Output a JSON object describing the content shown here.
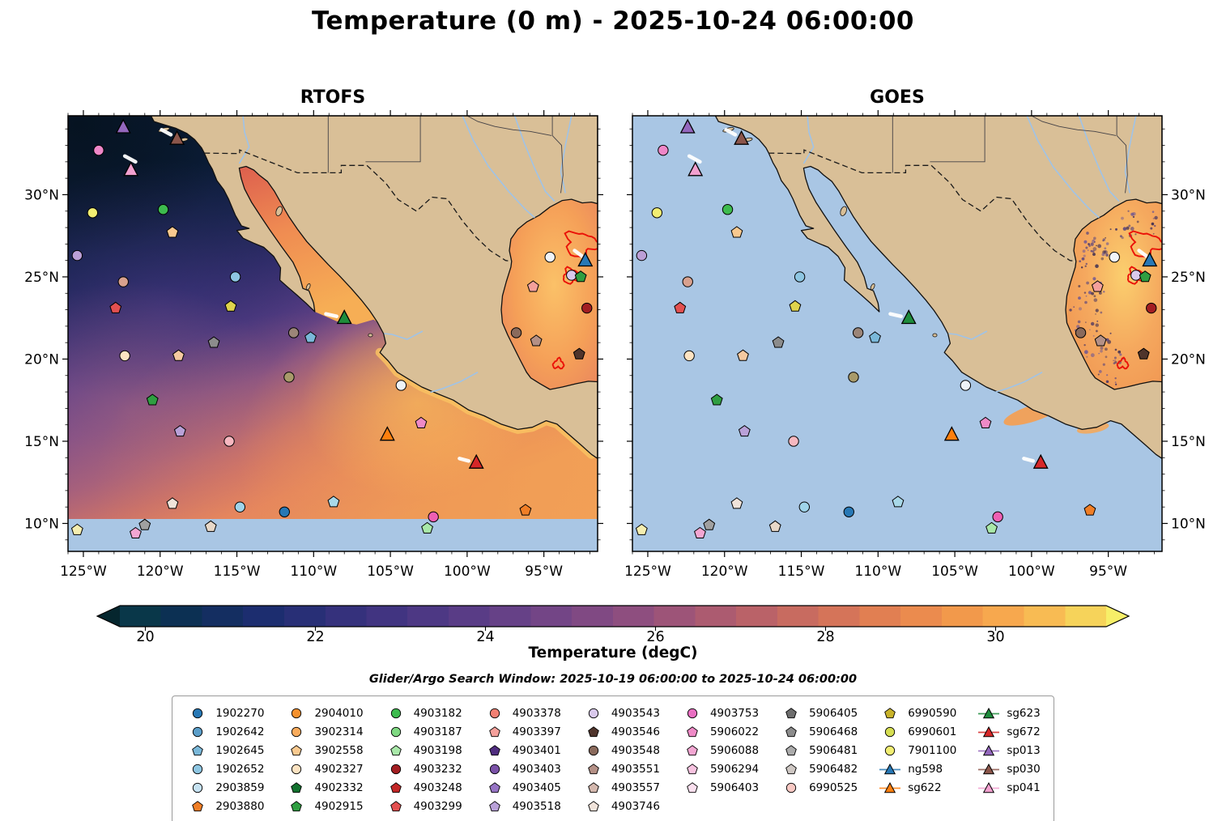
{
  "chart_data": {
    "type": "heatmap",
    "title": "Temperature (0 m) - 2025-10-24 06:00:00",
    "panels": [
      {
        "title": "RTOFS",
        "mode": "rtofs"
      },
      {
        "title": "GOES",
        "mode": "goes"
      }
    ],
    "search_window_text": "Glider/Argo Search Window: 2025-10-19 06:00:00 to 2025-10-24 06:00:00",
    "extent": {
      "lon_min": -126.0,
      "lon_max": -91.5,
      "lat_min": 8.3,
      "lat_max": 34.8
    },
    "x_ticks": [
      {
        "value": -125,
        "label": "125°W"
      },
      {
        "value": -120,
        "label": "120°W"
      },
      {
        "value": -115,
        "label": "115°W"
      },
      {
        "value": -110,
        "label": "110°W"
      },
      {
        "value": -105,
        "label": "105°W"
      },
      {
        "value": -100,
        "label": "100°W"
      },
      {
        "value": -95,
        "label": "95°W"
      }
    ],
    "y_ticks": [
      {
        "value": 30,
        "label": "30°N"
      },
      {
        "value": 25,
        "label": "25°N"
      },
      {
        "value": 20,
        "label": "20°N"
      },
      {
        "value": 15,
        "label": "15°N"
      },
      {
        "value": 10,
        "label": "10°N"
      }
    ],
    "colorbar": {
      "label": "Temperature (degC)",
      "vmin": 19.7,
      "vmax": 31.3,
      "n_blocks": 24,
      "ticks": [
        {
          "value": 20,
          "label": "20"
        },
        {
          "value": 22,
          "label": "22"
        },
        {
          "value": 24,
          "label": "24"
        },
        {
          "value": 26,
          "label": "26"
        },
        {
          "value": 28,
          "label": "28"
        },
        {
          "value": 30,
          "label": "30"
        }
      ],
      "stops": [
        {
          "t": 0.0,
          "c": "#083a44"
        },
        {
          "t": 0.07,
          "c": "#0d2f55"
        },
        {
          "t": 0.15,
          "c": "#1d2d70"
        },
        {
          "t": 0.24,
          "c": "#38317e"
        },
        {
          "t": 0.33,
          "c": "#523a86"
        },
        {
          "t": 0.42,
          "c": "#6d4387"
        },
        {
          "t": 0.5,
          "c": "#874b82"
        },
        {
          "t": 0.57,
          "c": "#a05577"
        },
        {
          "t": 0.64,
          "c": "#b86169"
        },
        {
          "t": 0.71,
          "c": "#d06f5c"
        },
        {
          "t": 0.78,
          "c": "#e48150"
        },
        {
          "t": 0.85,
          "c": "#f2974b"
        },
        {
          "t": 0.92,
          "c": "#f9b150"
        },
        {
          "t": 1.0,
          "c": "#f5df5e"
        }
      ],
      "under_color": "#05262e",
      "over_color": "#f7ef68"
    },
    "legend_columns": [
      [
        {
          "id": "1902270",
          "shape": "circle",
          "color": "#2878b5"
        },
        {
          "id": "1902642",
          "shape": "circle",
          "color": "#5b9ec9"
        },
        {
          "id": "1902645",
          "shape": "pentagon",
          "color": "#7ab8d9"
        },
        {
          "id": "1902652",
          "shape": "circle",
          "color": "#8ec6e2"
        },
        {
          "id": "2903859",
          "shape": "circle",
          "color": "#c6e2f2"
        },
        {
          "id": "2903880",
          "shape": "pentagon",
          "color": "#f07e26"
        }
      ],
      [
        {
          "id": "2904010",
          "shape": "circle",
          "color": "#f5912e"
        },
        {
          "id": "3902314",
          "shape": "circle",
          "color": "#f9ab5c"
        },
        {
          "id": "3902558",
          "shape": "pentagon",
          "color": "#f9c98f"
        },
        {
          "id": "4902327",
          "shape": "circle",
          "color": "#fde3c2"
        },
        {
          "id": "4902332",
          "shape": "pentagon",
          "color": "#12712e"
        },
        {
          "id": "4902915",
          "shape": "pentagon",
          "color": "#2f9e41"
        }
      ],
      [
        {
          "id": "4903182",
          "shape": "circle",
          "color": "#3dbb4e"
        },
        {
          "id": "4903187",
          "shape": "circle",
          "color": "#7fd982"
        },
        {
          "id": "4903198",
          "shape": "pentagon",
          "color": "#a9e8a9"
        },
        {
          "id": "4903232",
          "shape": "circle",
          "color": "#a31e22"
        },
        {
          "id": "4903248",
          "shape": "pentagon",
          "color": "#c32727"
        },
        {
          "id": "4903299",
          "shape": "pentagon",
          "color": "#e35050"
        }
      ],
      [
        {
          "id": "4903378",
          "shape": "circle",
          "color": "#f28073"
        },
        {
          "id": "4903397",
          "shape": "pentagon",
          "color": "#f5a09b"
        },
        {
          "id": "4903401",
          "shape": "pentagon",
          "color": "#4f2d7f"
        },
        {
          "id": "4903403",
          "shape": "circle",
          "color": "#7b52a8"
        },
        {
          "id": "4903405",
          "shape": "pentagon",
          "color": "#9674c4"
        },
        {
          "id": "4903518",
          "shape": "pentagon",
          "color": "#b9a1d8"
        }
      ],
      [
        {
          "id": "4903543",
          "shape": "circle",
          "color": "#d9c9ec"
        },
        {
          "id": "4903546",
          "shape": "pentagon",
          "color": "#4f342b"
        },
        {
          "id": "4903548",
          "shape": "circle",
          "color": "#8a6a5c"
        },
        {
          "id": "4903551",
          "shape": "pentagon",
          "color": "#b49086"
        },
        {
          "id": "4903557",
          "shape": "pentagon",
          "color": "#d4b8ae"
        },
        {
          "id": "4903746",
          "shape": "pentagon",
          "color": "#f0e3da"
        }
      ],
      [
        {
          "id": "4903753",
          "shape": "circle",
          "color": "#e86ec1"
        },
        {
          "id": "5906022",
          "shape": "pentagon",
          "color": "#ef8ac7"
        },
        {
          "id": "5906088",
          "shape": "pentagon",
          "color": "#f3a6d2"
        },
        {
          "id": "5906294",
          "shape": "pentagon",
          "color": "#f7c3e0"
        },
        {
          "id": "5906403",
          "shape": "pentagon",
          "color": "#fbdfee"
        }
      ],
      [
        {
          "id": "5906405",
          "shape": "pentagon",
          "color": "#6e6e6e"
        },
        {
          "id": "5906468",
          "shape": "pentagon",
          "color": "#8c8c8c"
        },
        {
          "id": "5906481",
          "shape": "pentagon",
          "color": "#ababab"
        },
        {
          "id": "5906482",
          "shape": "pentagon",
          "color": "#cfc8c4"
        },
        {
          "id": "6990525",
          "shape": "circle",
          "color": "#f9c9c4"
        }
      ],
      [
        {
          "id": "6990590",
          "shape": "pentagon",
          "color": "#c8b22a"
        },
        {
          "id": "6990601",
          "shape": "circle",
          "color": "#d6de52"
        },
        {
          "id": "7901100",
          "shape": "circle",
          "color": "#f2ee72"
        },
        {
          "id": "ng598",
          "shape": "glider",
          "color": "#2878b5"
        },
        {
          "id": "sg622",
          "shape": "glider",
          "color": "#ff7f0e"
        }
      ],
      [
        {
          "id": "sg623",
          "shape": "glider",
          "color": "#1e8c3c"
        },
        {
          "id": "sg672",
          "shape": "glider",
          "color": "#d62728"
        },
        {
          "id": "sp013",
          "shape": "glider",
          "color": "#9467bd"
        },
        {
          "id": "sp030",
          "shape": "glider",
          "color": "#8c564b"
        },
        {
          "id": "sp041",
          "shape": "glider",
          "color": "#f2a0cf"
        }
      ]
    ],
    "platform_markers": [
      {
        "shape": "triangle",
        "color": "#9467bd",
        "lon": -122.4,
        "lat": 34.1
      },
      {
        "shape": "triangle",
        "color": "#8c564b",
        "lon": -118.9,
        "lat": 33.4
      },
      {
        "shape": "circle",
        "color": "#ef87c8",
        "lon": -124.0,
        "lat": 32.7
      },
      {
        "shape": "triangle",
        "color": "#f2a0cf",
        "lon": -121.9,
        "lat": 31.5
      },
      {
        "shape": "circle",
        "color": "#f2ee72",
        "lon": -124.4,
        "lat": 28.9
      },
      {
        "shape": "circle",
        "color": "#3dbb4e",
        "lon": -119.8,
        "lat": 29.1
      },
      {
        "shape": "pentagon",
        "color": "#f9c98f",
        "lon": -119.2,
        "lat": 27.7
      },
      {
        "shape": "circle",
        "color": "#bc9fd6",
        "lon": -125.4,
        "lat": 26.3
      },
      {
        "shape": "circle",
        "color": "#d9a18e",
        "lon": -122.4,
        "lat": 24.7
      },
      {
        "shape": "pentagon",
        "color": "#e35050",
        "lon": -122.9,
        "lat": 23.1
      },
      {
        "shape": "circle",
        "color": "#8ec6e2",
        "lon": -115.1,
        "lat": 25.0
      },
      {
        "shape": "pentagon",
        "color": "#dfd34c",
        "lon": -115.4,
        "lat": 23.2
      },
      {
        "shape": "pentagon",
        "color": "#8c8c8c",
        "lon": -116.5,
        "lat": 21.0
      },
      {
        "shape": "circle",
        "color": "#9b8578",
        "lon": -111.3,
        "lat": 21.6
      },
      {
        "shape": "pentagon",
        "color": "#7ab8d9",
        "lon": -110.2,
        "lat": 21.3
      },
      {
        "shape": "triangle",
        "color": "#1e8c3c",
        "lon": -108.0,
        "lat": 22.5
      },
      {
        "shape": "circle",
        "color": "#fde3c2",
        "lon": -122.3,
        "lat": 20.2
      },
      {
        "shape": "pentagon",
        "color": "#f5c9a0",
        "lon": -118.8,
        "lat": 20.2
      },
      {
        "shape": "circle",
        "color": "#a89a6a",
        "lon": -111.6,
        "lat": 18.9
      },
      {
        "shape": "pentagon",
        "color": "#2f9e41",
        "lon": -120.5,
        "lat": 17.5
      },
      {
        "shape": "pentagon",
        "color": "#b9a1d8",
        "lon": -118.7,
        "lat": 15.6
      },
      {
        "shape": "circle",
        "color": "#f7b8c0",
        "lon": -115.5,
        "lat": 15.0
      },
      {
        "shape": "circle",
        "color": "#eef3f8",
        "lon": -104.3,
        "lat": 18.4
      },
      {
        "shape": "triangle",
        "color": "#ff7f0e",
        "lon": -105.2,
        "lat": 15.4
      },
      {
        "shape": "pentagon",
        "color": "#ef8ac7",
        "lon": -103.0,
        "lat": 16.1
      },
      {
        "shape": "triangle",
        "color": "#d62728",
        "lon": -99.4,
        "lat": 13.7
      },
      {
        "shape": "pentagon",
        "color": "#f0e3da",
        "lon": -119.2,
        "lat": 11.2
      },
      {
        "shape": "circle",
        "color": "#9fd4ea",
        "lon": -114.8,
        "lat": 11.0
      },
      {
        "shape": "circle",
        "color": "#2878b5",
        "lon": -111.9,
        "lat": 10.7
      },
      {
        "shape": "pentagon",
        "color": "#a8d8e8",
        "lon": -108.7,
        "lat": 11.3
      },
      {
        "shape": "circle",
        "color": "#ef5fb3",
        "lon": -102.2,
        "lat": 10.4
      },
      {
        "shape": "pentagon",
        "color": "#f5eeb0",
        "lon": -125.4,
        "lat": 9.6
      },
      {
        "shape": "pentagon",
        "color": "#f3a6d2",
        "lon": -121.6,
        "lat": 9.4
      },
      {
        "shape": "pentagon",
        "color": "#a0a0a0",
        "lon": -121.0,
        "lat": 9.9
      },
      {
        "shape": "pentagon",
        "color": "#e8d8c8",
        "lon": -116.7,
        "lat": 9.8
      },
      {
        "shape": "pentagon",
        "color": "#a9e8a9",
        "lon": -102.6,
        "lat": 9.7
      },
      {
        "shape": "pentagon",
        "color": "#f07e26",
        "lon": -96.2,
        "lat": 10.8
      },
      {
        "shape": "circle",
        "color": "#f0f4f8",
        "lon": -94.6,
        "lat": 26.2
      },
      {
        "shape": "circle",
        "color": "#d9c9ec",
        "lon": -93.2,
        "lat": 25.1
      },
      {
        "shape": "pentagon",
        "color": "#2f9e41",
        "lon": -92.6,
        "lat": 25.0
      },
      {
        "shape": "triangle",
        "color": "#2878b5",
        "lon": -92.3,
        "lat": 26.0
      },
      {
        "shape": "pentagon",
        "color": "#f5a09b",
        "lon": -95.7,
        "lat": 24.4
      },
      {
        "shape": "circle",
        "color": "#a31e22",
        "lon": -92.2,
        "lat": 23.1
      },
      {
        "shape": "circle",
        "color": "#8a6a5c",
        "lon": -96.8,
        "lat": 21.6
      },
      {
        "shape": "pentagon",
        "color": "#b49086",
        "lon": -95.5,
        "lat": 21.1
      },
      {
        "shape": "pentagon",
        "color": "#4f342b",
        "lon": -92.7,
        "lat": 20.3
      }
    ],
    "glider_tracks": [
      {
        "from": [
          -119.9,
          33.95
        ],
        "to": [
          -119.3,
          33.65
        ]
      },
      {
        "from": [
          -122.3,
          32.35
        ],
        "to": [
          -121.6,
          32.0
        ]
      },
      {
        "from": [
          -109.2,
          22.75
        ],
        "to": [
          -108.5,
          22.6
        ]
      },
      {
        "from": [
          -100.5,
          13.95
        ],
        "to": [
          -99.9,
          13.8
        ]
      },
      {
        "from": [
          -93.0,
          26.6
        ],
        "to": [
          -92.5,
          26.25
        ]
      }
    ],
    "eddy_contours": [
      {
        "lon": -92.6,
        "lat": 27.0,
        "rx": 1.0,
        "ry": 0.7,
        "seed": 1.3
      },
      {
        "lon": -93.2,
        "lat": 25.05,
        "rx": 0.55,
        "ry": 0.42,
        "seed": 2.1
      },
      {
        "lon": -94.05,
        "lat": 19.7,
        "rx": 0.34,
        "ry": 0.27,
        "seed": 3.4
      }
    ]
  },
  "colors": {
    "land": "#d9bf97",
    "coastline": "#111111",
    "ocean_nodata": "#a9c6e4",
    "river": "#9fc3e8",
    "border": "#1a1a1a",
    "state_line": "#33333d",
    "eddy_contour": "#ea1208",
    "glider_track": "#ffffff",
    "marker_edge": "#000000"
  }
}
